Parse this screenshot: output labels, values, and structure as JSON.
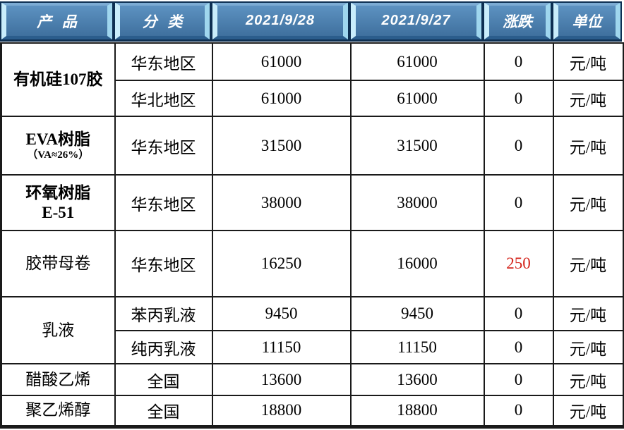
{
  "chart_data": {
    "type": "table",
    "title": "",
    "columns": [
      "产品",
      "分类",
      "2021/9/28",
      "2021/9/27",
      "涨跌",
      "单位"
    ],
    "rows": [
      [
        "有机硅107胶",
        "华东地区",
        61000,
        61000,
        0,
        "元/吨"
      ],
      [
        "有机硅107胶",
        "华北地区",
        61000,
        61000,
        0,
        "元/吨"
      ],
      [
        "EVA树脂（VA≈26%）",
        "华东地区",
        31500,
        31500,
        0,
        "元/吨"
      ],
      [
        "环氧树脂E-51",
        "华东地区",
        38000,
        38000,
        0,
        "元/吨"
      ],
      [
        "胶带母卷",
        "华东地区",
        16250,
        16000,
        250,
        "元/吨"
      ],
      [
        "乳液",
        "苯丙乳液",
        9450,
        9450,
        0,
        "元/吨"
      ],
      [
        "乳液",
        "纯丙乳液",
        11150,
        11150,
        0,
        "元/吨"
      ],
      [
        "醋酸乙烯",
        "全国",
        13600,
        13600,
        0,
        "元/吨"
      ],
      [
        "聚乙烯醇",
        "全国",
        18800,
        18800,
        0,
        "元/吨"
      ]
    ]
  },
  "header": {
    "columns": [
      {
        "id": "product",
        "label": "产品",
        "spaced": true
      },
      {
        "id": "category",
        "label": "分类",
        "spaced": true
      },
      {
        "id": "price-current",
        "label": "2021/9/28",
        "type": "date"
      },
      {
        "id": "price-previous",
        "label": "2021/9/27",
        "type": "date"
      },
      {
        "id": "change",
        "label": "涨跌",
        "spaced": false
      },
      {
        "id": "unit",
        "label": "单位",
        "spaced": false
      }
    ]
  },
  "rows": [
    {
      "product": {
        "lines": [
          "有机硅107胶"
        ],
        "rowspan": 2,
        "bold": true
      },
      "category": "华东地区",
      "price_current": "61000",
      "price_previous": "61000",
      "change": "0",
      "unit": "元/吨"
    },
    {
      "sub": true,
      "category": "华北地区",
      "price_current": "61000",
      "price_previous": "61000",
      "change": "0",
      "unit": "元/吨"
    },
    {
      "product": {
        "lines": [
          "EVA树脂",
          "（VA≈26%）"
        ],
        "line2_small": true,
        "bold": true
      },
      "category": "华东地区",
      "price_current": "31500",
      "price_previous": "31500",
      "change": "0",
      "unit": "元/吨"
    },
    {
      "product": {
        "lines": [
          "环氧树脂",
          "E-51"
        ],
        "bold": true
      },
      "category": "华东地区",
      "price_current": "38000",
      "price_previous": "38000",
      "change": "0",
      "unit": "元/吨"
    },
    {
      "product": {
        "lines": [
          "胶带母卷"
        ],
        "bold": false
      },
      "category": "华东地区",
      "price_current": "16250",
      "price_previous": "16000",
      "change": "250",
      "change_up": true,
      "unit": "元/吨"
    },
    {
      "product": {
        "lines": [
          "乳液"
        ],
        "rowspan": 2,
        "bold": false
      },
      "category": "苯丙乳液",
      "price_current": "9450",
      "price_previous": "9450",
      "change": "0",
      "unit": "元/吨"
    },
    {
      "sub": true,
      "category": "纯丙乳液",
      "price_current": "11150",
      "price_previous": "11150",
      "change": "0",
      "unit": "元/吨"
    },
    {
      "product": {
        "lines": [
          "醋酸乙烯"
        ],
        "bold": false
      },
      "category": "全国",
      "price_current": "13600",
      "price_previous": "13600",
      "change": "0",
      "unit": "元/吨"
    },
    {
      "product": {
        "lines": [
          "聚乙烯醇"
        ],
        "bold": false
      },
      "category": "全国",
      "price_current": "18800",
      "price_previous": "18800",
      "change": "0",
      "unit": "元/吨"
    }
  ],
  "colors": {
    "frame": "#0d2f52",
    "face_top": "#5d92c1",
    "face_bottom": "#3f709e",
    "bevel_left": "#c9edfb",
    "bevel_right": "#9fd6ee",
    "bevel_top": "#7cabd3",
    "bevel_bottom": "#2b5d8c",
    "header_text": "#ffffff",
    "grid": "#1a1a1a",
    "body_text": "#000000",
    "change_up": "#d4231a",
    "bg": "#ffffff"
  }
}
